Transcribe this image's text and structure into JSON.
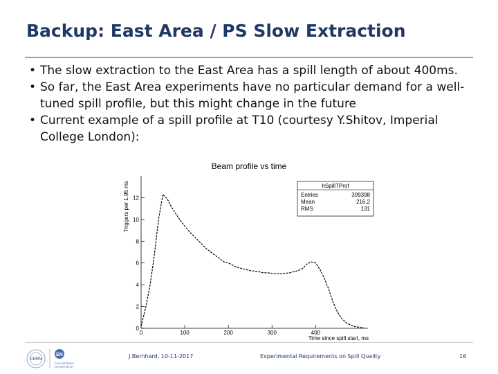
{
  "slide": {
    "title": "Backup: East Area / PS Slow Extraction",
    "bullets": [
      "The slow extraction to the East Area has a spill length of about 400ms.",
      "So far, the East Area experiments have no particular demand for a well-tuned spill profile, but this might change in the future",
      "Current example of a spill profile at T10 (courtesy Y.Shitov, Imperial College London):"
    ],
    "bullet_glyph": "•"
  },
  "chart_data": {
    "type": "line",
    "title": "Beam profile vs time",
    "xlabel": "Time since spill start, ms",
    "ylabel": "Triggers per 1.95 ms",
    "xlim": [
      0,
      520
    ],
    "ylim": [
      0,
      14
    ],
    "x_ticks": [
      0,
      100,
      200,
      300,
      400
    ],
    "y_ticks": [
      0,
      2,
      4,
      6,
      8,
      10,
      12
    ],
    "grid": false,
    "stats_box": {
      "name": "hSpillTProf",
      "rows": [
        {
          "label": "Entries",
          "value": "399398"
        },
        {
          "label": "Mean",
          "value": "216.2"
        },
        {
          "label": "RMS",
          "value": "131"
        }
      ]
    },
    "series": [
      {
        "x": [
          0,
          10,
          20,
          30,
          40,
          50,
          60,
          70,
          80,
          90,
          100,
          110,
          120,
          130,
          140,
          150,
          160,
          170,
          180,
          190,
          200,
          210,
          220,
          230,
          240,
          250,
          260,
          270,
          280,
          290,
          300,
          310,
          320,
          330,
          340,
          350,
          360,
          370,
          380,
          390,
          400,
          410,
          420,
          430,
          440,
          450,
          460,
          470,
          480,
          490,
          500,
          510
        ],
        "values": [
          0.2,
          1.8,
          3.8,
          6.6,
          10.0,
          12.3,
          11.9,
          11.1,
          10.5,
          9.9,
          9.4,
          8.9,
          8.5,
          8.1,
          7.7,
          7.3,
          7.0,
          6.7,
          6.4,
          6.1,
          6.0,
          5.8,
          5.6,
          5.5,
          5.4,
          5.3,
          5.25,
          5.2,
          5.1,
          5.1,
          5.05,
          5.0,
          5.0,
          5.05,
          5.1,
          5.2,
          5.3,
          5.5,
          5.9,
          6.1,
          6.0,
          5.4,
          4.6,
          3.6,
          2.4,
          1.5,
          0.9,
          0.5,
          0.3,
          0.15,
          0.1,
          0.05
        ]
      }
    ]
  },
  "footer": {
    "author_date": "J.Bernhard, 10-11-2017",
    "talk_title": "Experimental Requirements on Spill Quality",
    "page_number": "16",
    "logo_left": "CERN",
    "logo_right_main": "EN",
    "logo_right_sub1": "ENGINEERING",
    "logo_right_sub2": "DEPARTMENT"
  },
  "colors": {
    "title": "#1f3864",
    "text": "#111111",
    "footer": "#1f3864",
    "plot_line": "#000000"
  }
}
